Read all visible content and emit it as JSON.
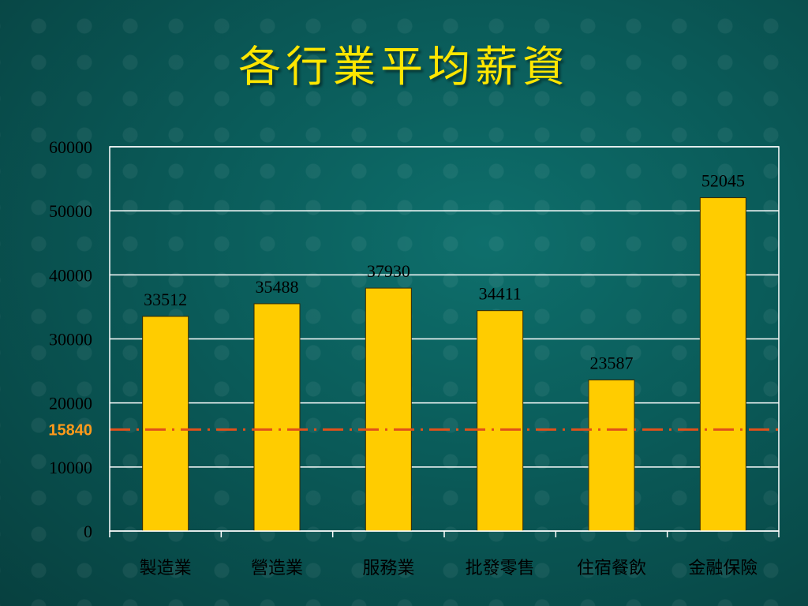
{
  "slide": {
    "title": "各行業平均薪資"
  },
  "colors": {
    "bar": "#ffcc00",
    "bar_stroke": "#3a2a00",
    "ref_line": "#e0501a",
    "ref_label": "#ff9a1a",
    "grid": "#ffffff"
  },
  "chart_data": {
    "type": "bar",
    "title": "各行業平均薪資",
    "categories": [
      "製造業",
      "營造業",
      "服務業",
      "批發零售",
      "住宿餐飲",
      "金融保險"
    ],
    "values": [
      33512,
      35488,
      37930,
      34411,
      23587,
      52045
    ],
    "ylim": [
      0,
      60000
    ],
    "yticks": [
      0,
      10000,
      20000,
      30000,
      40000,
      50000,
      60000
    ],
    "grid": true,
    "reference_line": {
      "value": 15840,
      "label": "15840",
      "style": "dash-dot"
    }
  }
}
